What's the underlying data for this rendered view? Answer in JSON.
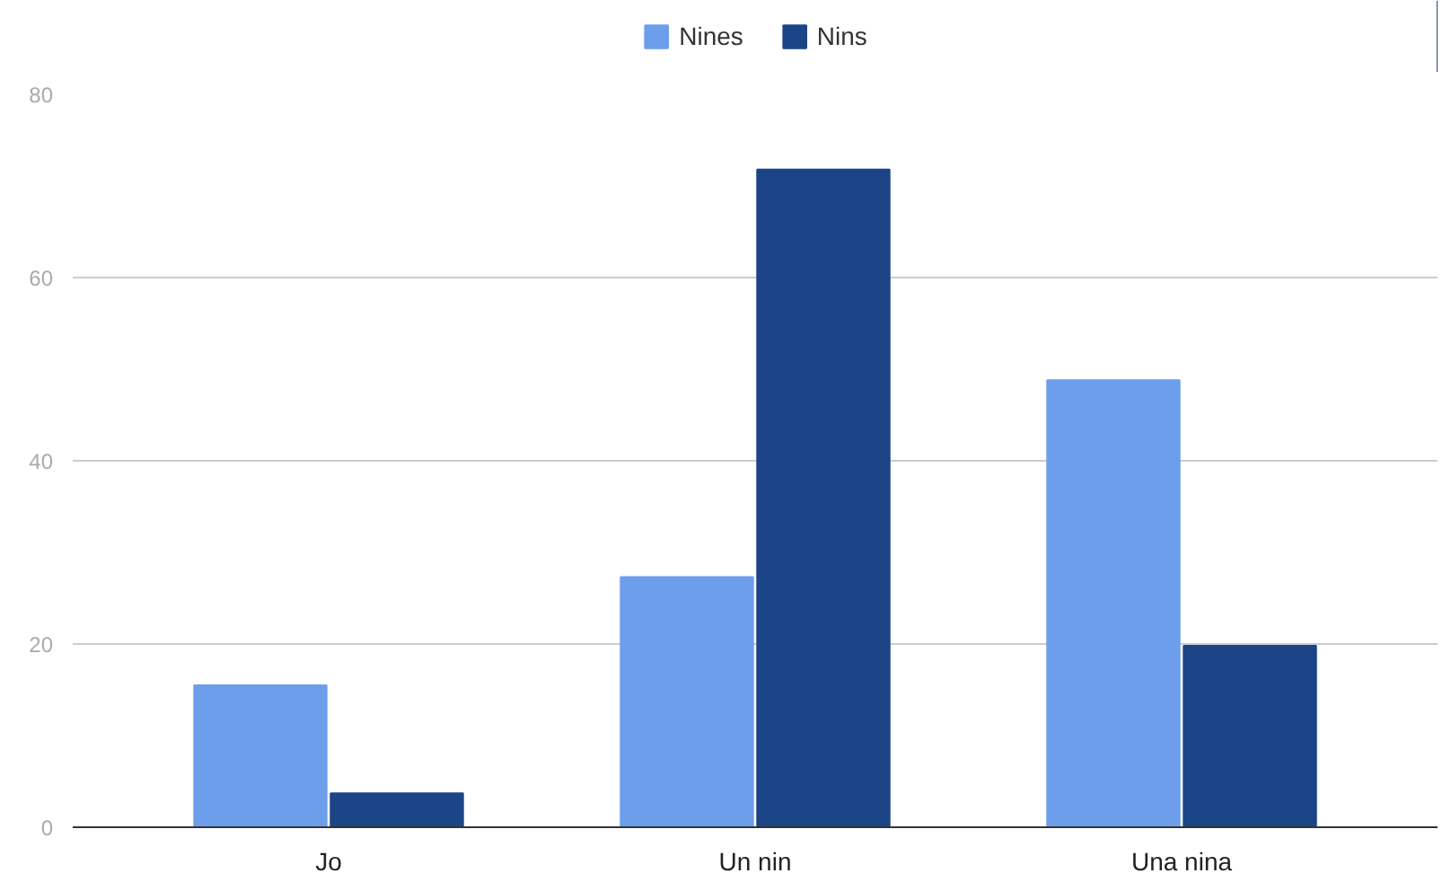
{
  "chart_data": {
    "type": "bar",
    "categories": [
      "Jo",
      "Un nin",
      "Una nina"
    ],
    "series": [
      {
        "name": "Nines",
        "color": "#6d9eeb",
        "values": [
          15.5,
          27.3,
          48.8
        ]
      },
      {
        "name": "Nins",
        "color": "#1c4587",
        "values": [
          3.7,
          71.8,
          19.8
        ]
      }
    ],
    "ylim": [
      0,
      80
    ],
    "yticks": [
      0,
      20,
      40,
      60,
      80
    ],
    "grid": "y",
    "legend": "top"
  }
}
